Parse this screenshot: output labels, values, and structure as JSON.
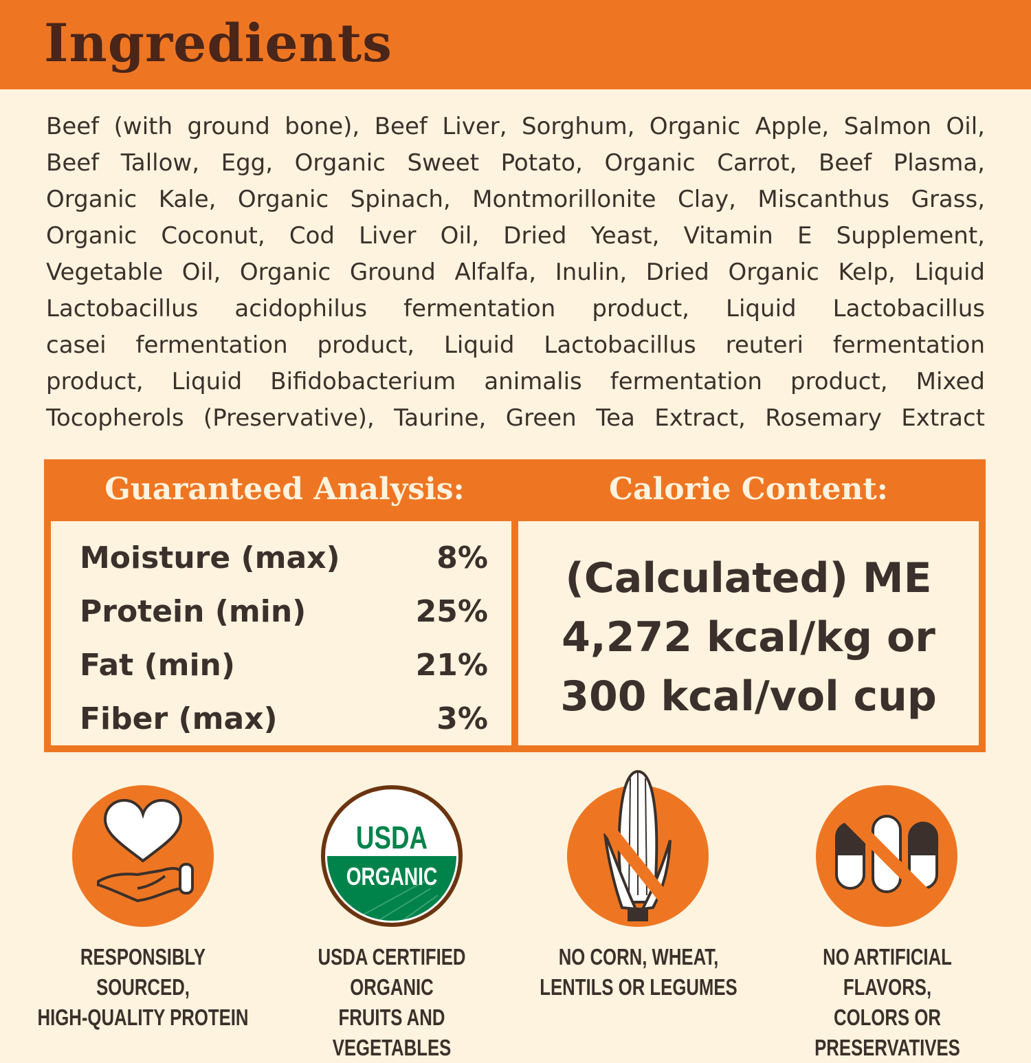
{
  "header": {
    "title": "Ingredients"
  },
  "ingredients_lines": [
    "Beef (with ground bone), Beef Liver, Sorghum, Organic Apple, Salmon Oil,",
    "Beef Tallow, Egg, Organic Sweet Potato, Organic Carrot, Beef Plasma,",
    "Organic Kale, Organic Spinach, Montmorillonite Clay,  Miscanthus Grass,",
    "Organic Coconut, Cod Liver Oil, Dried Yeast, Vitamin E Supplement,",
    "Vegetable Oil, Organic Ground Alfalfa, Inulin, Dried Organic Kelp, Liquid",
    "Lactobacillus acidophilus fermentation product, Liquid Lactobacillus",
    "casei fermentation product, Liquid Lactobacillus reuteri fermentation",
    "product, Liquid Bifidobacterium animalis fermentation product, Mixed",
    "Tocopherols (Preservative), Taurine, Green Tea Extract, Rosemary Extract"
  ],
  "analysis": {
    "title": "Guaranteed Analysis:",
    "rows": [
      {
        "label": "Moisture (max)",
        "value": "8%"
      },
      {
        "label": "Protein (min)",
        "value": "25%"
      },
      {
        "label": "Fat (min)",
        "value": "21%"
      },
      {
        "label": "Fiber (max)",
        "value": "3%"
      }
    ]
  },
  "calorie": {
    "title": "Calorie Content:",
    "lines": [
      "(Calculated) ME",
      "4,272 kcal/kg or",
      "300 kcal/vol cup"
    ]
  },
  "badges": [
    {
      "icon": "heart-hand-icon",
      "line1": "RESPONSIBLY SOURCED,",
      "line2": "HIGH-QUALITY PROTEIN"
    },
    {
      "icon": "usda-organic-seal",
      "seal_text": [
        "USDA",
        "ORGANIC"
      ],
      "line1": "USDA CERTIFIED ORGANIC",
      "line2": "FRUITS AND VEGETABLES"
    },
    {
      "icon": "no-corn-icon",
      "line1": "NO CORN, WHEAT,",
      "line2": "LENTILS OR LEGUMES"
    },
    {
      "icon": "no-capsules-icon",
      "line1": "NO ARTIFICIAL FLAVORS,",
      "line2": "COLORS OR PRESERVATIVES"
    }
  ],
  "colors": {
    "accent": "#ee7623",
    "background": "#fef3de",
    "heading": "#4a2519",
    "text": "#3b302b",
    "usda_green": "#00834b",
    "usda_brown": "#6b3410"
  }
}
